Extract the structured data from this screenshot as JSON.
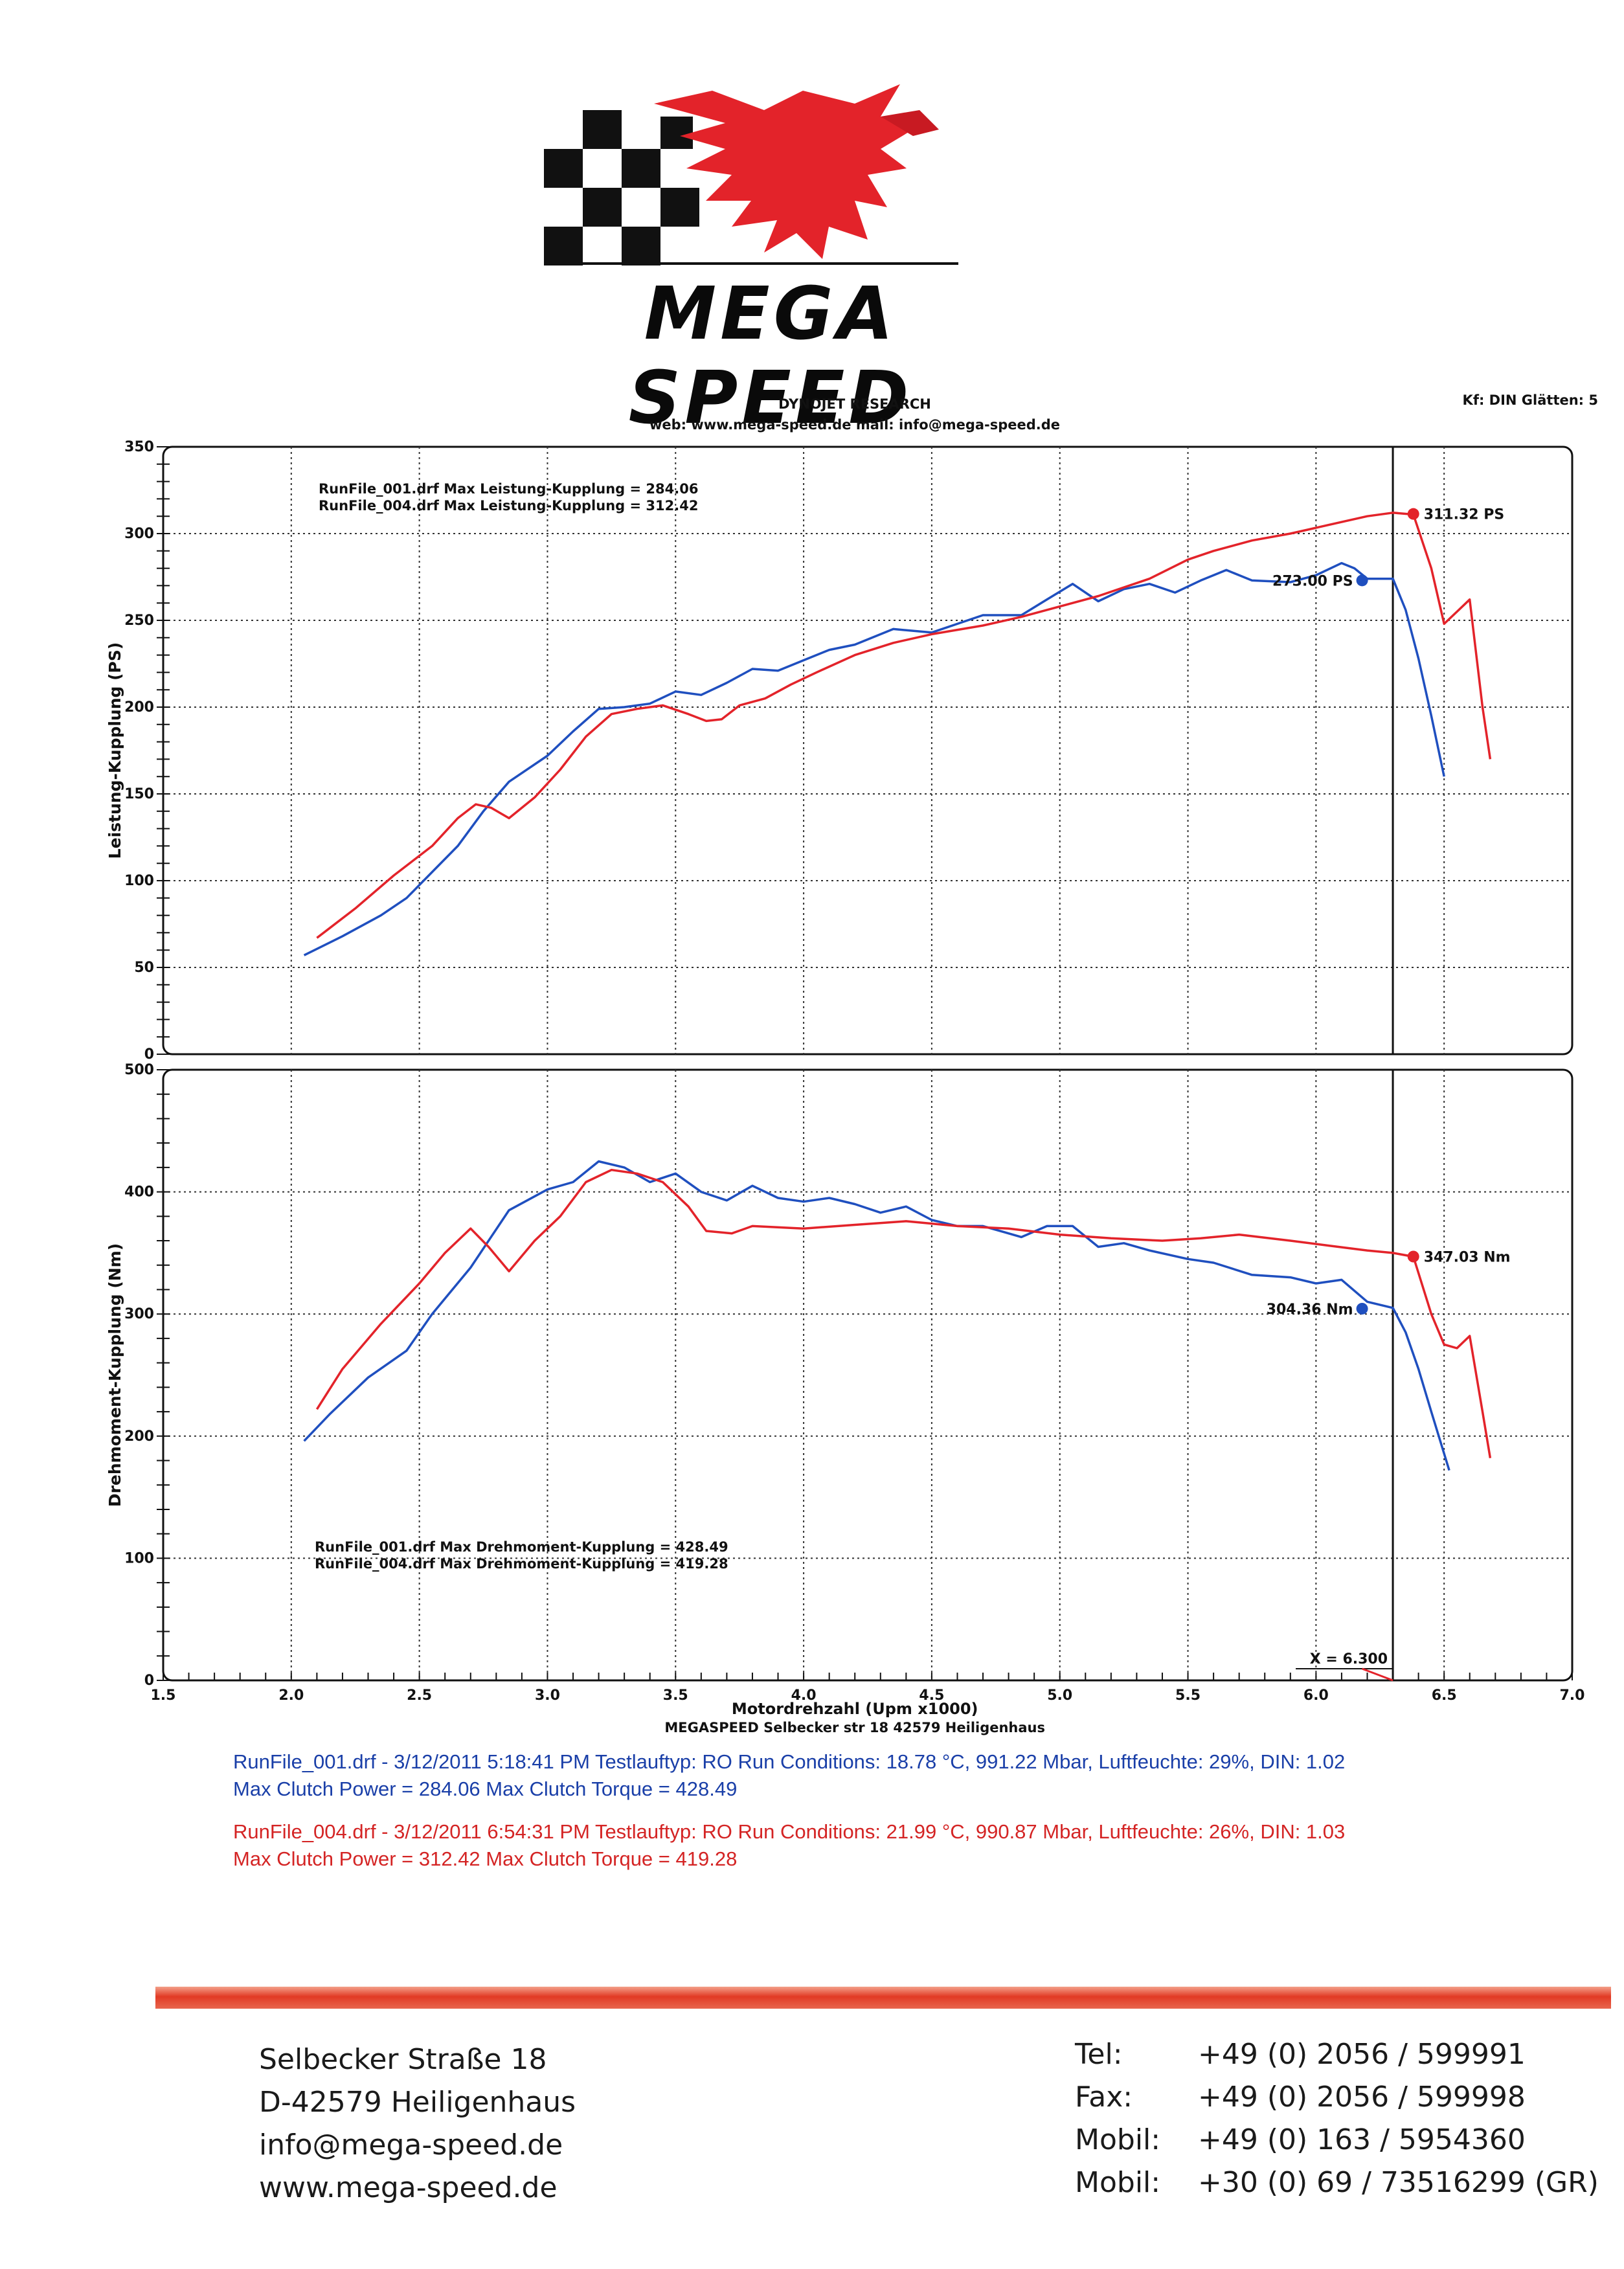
{
  "logo": {
    "text": "MEGA SPEED",
    "colors": {
      "red": "#e3232a",
      "black": "#111111"
    }
  },
  "header": {
    "title": "DYNOJET RESEARCH",
    "web": "web: www.mega-speed.de    mail: info@mega-speed.de",
    "settings": "Kf: DIN  Glätten: 5"
  },
  "chart_data": [
    {
      "type": "line",
      "ylabel": "Leistung-Kupplung (PS)",
      "xlim": [
        1.5,
        7.0
      ],
      "ylim": [
        0,
        350
      ],
      "yticks": [
        0,
        50,
        100,
        150,
        200,
        250,
        300,
        350
      ],
      "grid": true,
      "annotations": [
        "RunFile_001.drf Max Leistung-Kupplung = 284.06",
        "RunFile_004.drf Max Leistung-Kupplung = 312.42"
      ],
      "markers": [
        {
          "label": "273.00 PS",
          "x": 6.18,
          "y": 273.0,
          "color": "#1f4fbf"
        },
        {
          "label": "311.32 PS",
          "x": 6.38,
          "y": 311.32,
          "color": "#e3232a"
        }
      ],
      "cursor_x": 6.3,
      "series": [
        {
          "color": "#1f4fbf",
          "points": [
            [
              2.05,
              57
            ],
            [
              2.2,
              68
            ],
            [
              2.35,
              80
            ],
            [
              2.45,
              90
            ],
            [
              2.55,
              105
            ],
            [
              2.65,
              120
            ],
            [
              2.75,
              140
            ],
            [
              2.85,
              157
            ],
            [
              3.0,
              172
            ],
            [
              3.1,
              186
            ],
            [
              3.2,
              199
            ],
            [
              3.3,
              200
            ],
            [
              3.4,
              202
            ],
            [
              3.5,
              209
            ],
            [
              3.6,
              207
            ],
            [
              3.7,
              214
            ],
            [
              3.8,
              222
            ],
            [
              3.9,
              221
            ],
            [
              4.0,
              227
            ],
            [
              4.1,
              233
            ],
            [
              4.2,
              236
            ],
            [
              4.35,
              245
            ],
            [
              4.5,
              243
            ],
            [
              4.6,
              248
            ],
            [
              4.7,
              253
            ],
            [
              4.85,
              253
            ],
            [
              4.95,
              262
            ],
            [
              5.05,
              271
            ],
            [
              5.15,
              261
            ],
            [
              5.25,
              268
            ],
            [
              5.35,
              271
            ],
            [
              5.45,
              266
            ],
            [
              5.55,
              273
            ],
            [
              5.65,
              279
            ],
            [
              5.75,
              273
            ],
            [
              5.9,
              272
            ],
            [
              6.0,
              276
            ],
            [
              6.1,
              283
            ],
            [
              6.15,
              280
            ],
            [
              6.2,
              274
            ],
            [
              6.3,
              274
            ],
            [
              6.35,
              256
            ],
            [
              6.4,
              228
            ],
            [
              6.45,
              195
            ],
            [
              6.5,
              160
            ]
          ]
        },
        {
          "color": "#e3232a",
          "points": [
            [
              2.1,
              67
            ],
            [
              2.25,
              84
            ],
            [
              2.4,
              103
            ],
            [
              2.55,
              120
            ],
            [
              2.65,
              136
            ],
            [
              2.72,
              144
            ],
            [
              2.78,
              142
            ],
            [
              2.85,
              136
            ],
            [
              2.95,
              148
            ],
            [
              3.05,
              164
            ],
            [
              3.15,
              183
            ],
            [
              3.25,
              196
            ],
            [
              3.35,
              199
            ],
            [
              3.45,
              201
            ],
            [
              3.55,
              196
            ],
            [
              3.62,
              192
            ],
            [
              3.68,
              193
            ],
            [
              3.75,
              201
            ],
            [
              3.85,
              205
            ],
            [
              3.95,
              213
            ],
            [
              4.05,
              220
            ],
            [
              4.2,
              230
            ],
            [
              4.35,
              237
            ],
            [
              4.5,
              242
            ],
            [
              4.7,
              247
            ],
            [
              4.85,
              252
            ],
            [
              5.0,
              258
            ],
            [
              5.15,
              264
            ],
            [
              5.35,
              274
            ],
            [
              5.5,
              285
            ],
            [
              5.6,
              290
            ],
            [
              5.75,
              296
            ],
            [
              5.9,
              300
            ],
            [
              6.05,
              305
            ],
            [
              6.2,
              310
            ],
            [
              6.3,
              312
            ],
            [
              6.38,
              311
            ],
            [
              6.45,
              280
            ],
            [
              6.5,
              248
            ],
            [
              6.55,
              255
            ],
            [
              6.6,
              262
            ],
            [
              6.65,
              200
            ],
            [
              6.68,
              170
            ]
          ]
        }
      ]
    },
    {
      "type": "line",
      "ylabel": "Drehmoment-Kupplung (Nm)",
      "xlabel": "Motordrehzahl (Upm x1000)",
      "xlim": [
        1.5,
        7.0
      ],
      "ylim": [
        0,
        500
      ],
      "xticks": [
        1.5,
        2.0,
        2.5,
        3.0,
        3.5,
        4.0,
        4.5,
        5.0,
        5.5,
        6.0,
        6.5,
        7.0
      ],
      "yticks": [
        0,
        100,
        200,
        300,
        400,
        500
      ],
      "grid": true,
      "annotations": [
        "RunFile_001.drf Max Drehmoment-Kupplung = 428.49",
        "RunFile_004.drf Max Drehmoment-Kupplung = 419.28"
      ],
      "markers": [
        {
          "label": "304.36 Nm",
          "x": 6.18,
          "y": 304.36,
          "color": "#1f4fbf"
        },
        {
          "label": "347.03 Nm",
          "x": 6.38,
          "y": 347.03,
          "color": "#e3232a"
        }
      ],
      "cursor_x": 6.3,
      "cursor_label": "X = 6.300",
      "series": [
        {
          "color": "#1f4fbf",
          "points": [
            [
              2.05,
              196
            ],
            [
              2.15,
              218
            ],
            [
              2.3,
              248
            ],
            [
              2.45,
              270
            ],
            [
              2.55,
              300
            ],
            [
              2.7,
              338
            ],
            [
              2.85,
              385
            ],
            [
              3.0,
              402
            ],
            [
              3.1,
              408
            ],
            [
              3.2,
              425
            ],
            [
              3.3,
              420
            ],
            [
              3.4,
              408
            ],
            [
              3.5,
              415
            ],
            [
              3.6,
              400
            ],
            [
              3.7,
              393
            ],
            [
              3.8,
              405
            ],
            [
              3.9,
              395
            ],
            [
              4.0,
              392
            ],
            [
              4.1,
              395
            ],
            [
              4.2,
              390
            ],
            [
              4.3,
              383
            ],
            [
              4.4,
              388
            ],
            [
              4.5,
              377
            ],
            [
              4.6,
              372
            ],
            [
              4.7,
              372
            ],
            [
              4.85,
              363
            ],
            [
              4.95,
              372
            ],
            [
              5.05,
              372
            ],
            [
              5.15,
              355
            ],
            [
              5.25,
              358
            ],
            [
              5.35,
              352
            ],
            [
              5.5,
              345
            ],
            [
              5.6,
              342
            ],
            [
              5.75,
              332
            ],
            [
              5.9,
              330
            ],
            [
              6.0,
              325
            ],
            [
              6.1,
              328
            ],
            [
              6.2,
              310
            ],
            [
              6.3,
              305
            ],
            [
              6.35,
              285
            ],
            [
              6.4,
              255
            ],
            [
              6.45,
              220
            ],
            [
              6.52,
              172
            ]
          ]
        },
        {
          "color": "#e3232a",
          "points": [
            [
              2.1,
              222
            ],
            [
              2.2,
              255
            ],
            [
              2.35,
              292
            ],
            [
              2.5,
              325
            ],
            [
              2.6,
              350
            ],
            [
              2.7,
              370
            ],
            [
              2.77,
              355
            ],
            [
              2.85,
              335
            ],
            [
              2.95,
              360
            ],
            [
              3.05,
              380
            ],
            [
              3.15,
              408
            ],
            [
              3.25,
              418
            ],
            [
              3.35,
              415
            ],
            [
              3.45,
              408
            ],
            [
              3.55,
              388
            ],
            [
              3.62,
              368
            ],
            [
              3.72,
              366
            ],
            [
              3.8,
              372
            ],
            [
              4.0,
              370
            ],
            [
              4.2,
              373
            ],
            [
              4.4,
              376
            ],
            [
              4.6,
              372
            ],
            [
              4.8,
              370
            ],
            [
              5.0,
              365
            ],
            [
              5.2,
              362
            ],
            [
              5.4,
              360
            ],
            [
              5.55,
              362
            ],
            [
              5.7,
              365
            ],
            [
              5.9,
              360
            ],
            [
              6.05,
              356
            ],
            [
              6.2,
              352
            ],
            [
              6.3,
              350
            ],
            [
              6.38,
              347
            ],
            [
              6.45,
              300
            ],
            [
              6.5,
              275
            ],
            [
              6.55,
              272
            ],
            [
              6.6,
              282
            ],
            [
              6.65,
              220
            ],
            [
              6.68,
              182
            ]
          ]
        }
      ]
    }
  ],
  "chart_footer": "MEGASPEED  Selbecker str 18 42579 Heiligenhaus",
  "run_info": [
    {
      "color": "#1a3fa8",
      "line1": "RunFile_001.drf - 3/12/2011 5:18:41 PM  Testlauftyp: RO  Run Conditions: 18.78 °C, 991.22 Mbar,  Luftfeuchte: 29%, DIN: 1.02",
      "line2": "Max Clutch Power = 284.06  Max Clutch Torque = 428.49"
    },
    {
      "color": "#d42424",
      "line1": "RunFile_004.drf - 3/12/2011 6:54:31 PM  Testlauftyp: RO  Run Conditions: 21.99 °C, 990.87 Mbar,  Luftfeuchte: 26%, DIN: 1.03",
      "line2": "Max Clutch Power = 312.42  Max Clutch Torque = 419.28"
    }
  ],
  "footer": {
    "address": [
      "Selbecker Straße 18",
      "D-42579 Heiligenhaus",
      "info@mega-speed.de",
      "www.mega-speed.de"
    ],
    "contacts": [
      {
        "label": "Tel:",
        "value": "+49 (0) 2056 / 599991"
      },
      {
        "label": "Fax:",
        "value": "+49 (0) 2056 / 599998"
      },
      {
        "label": "Mobil:",
        "value": "+49 (0) 163 / 5954360"
      },
      {
        "label": "Mobil:",
        "value": "+30 (0) 69 / 73516299 (GR)"
      }
    ]
  }
}
